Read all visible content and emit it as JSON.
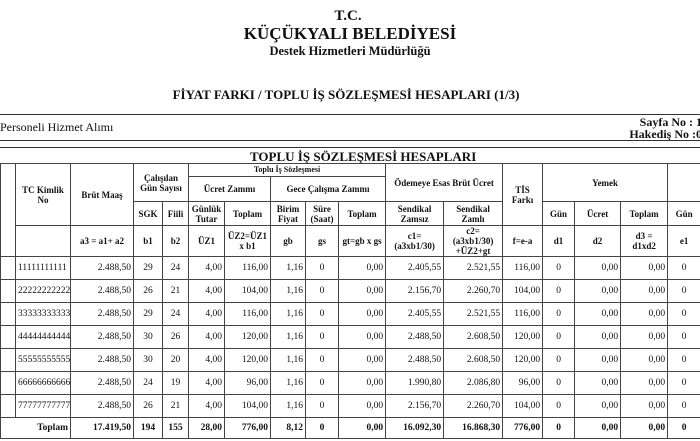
{
  "header": {
    "tc": "T.C.",
    "org": "KÜÇÜKYALI BELEDİYESİ",
    "dept": "Destek Hizmetleri Müdürlüğü",
    "report_title": "FİYAT FARKI / TOPLU İŞ SÖZLEŞMESİ HESAPLARI (1/3)",
    "service": "Personeli Hizmet Alımı",
    "page_no": "Sayfa No : 1",
    "hakedis_no": "Hakediş No :0"
  },
  "table": {
    "title": "TOPLU İŞ SÖZLEŞMESİ HESAPLARI",
    "headers": {
      "tc": "TC Kimlik No",
      "brut": "Brüt Maaş",
      "gun_sayisi": "Çalışılan Gün Sayısı",
      "tis": "Toplu İş Sözleşmesi",
      "ucret_zammi": "Ücret Zammı",
      "gece": "Gece Çalışma Zammı",
      "odemeye": "Ödemeye Esas Brüt Ücret",
      "tis_farki": "TİS Farkı",
      "yemek": "Yemek",
      "sgk": "SGK",
      "fiili": "Fiili",
      "gunluk": "Günlük Tutar",
      "toplam1": "Toplam",
      "birim": "Birim Fiyat",
      "sure": "Süre (Saat)",
      "toplam2": "Toplam",
      "zamsiz": "Sendikal Zamsız",
      "zamli": "Sendikal Zamlı",
      "gun1": "Gün",
      "ucret": "Ücret",
      "toplam3": "Toplam",
      "gun2": "Gün"
    },
    "formulas": [
      "a3 = a1+ a2",
      "b1",
      "b2",
      "ÜZ1",
      "ÜZ2=ÜZ1 x b1",
      "gb",
      "gs",
      "gt=gb x gs",
      "c1=(a3xb1/30)",
      "c2=(a3xb1/30) +ÜZ2+gt",
      "f=e-a",
      "d1",
      "d2",
      "d3 = d1xd2",
      "e1"
    ],
    "rows": [
      [
        "11111111111",
        "2.488,50",
        "29",
        "24",
        "4,00",
        "116,00",
        "1,16",
        "0",
        "0,00",
        "2.405,55",
        "2.521,55",
        "116,00",
        "0",
        "0,00",
        "0,00",
        "0"
      ],
      [
        "22222222222",
        "2.488,50",
        "26",
        "21",
        "4,00",
        "104,00",
        "1,16",
        "0",
        "0,00",
        "2.156,70",
        "2.260,70",
        "104,00",
        "0",
        "0,00",
        "0,00",
        "0"
      ],
      [
        "33333333333",
        "2.488,50",
        "29",
        "24",
        "4,00",
        "116,00",
        "1,16",
        "0",
        "0,00",
        "2.405,55",
        "2.521,55",
        "116,00",
        "0",
        "0,00",
        "0,00",
        "0"
      ],
      [
        "44444444444",
        "2.488,50",
        "30",
        "26",
        "4,00",
        "120,00",
        "1,16",
        "0",
        "0,00",
        "2.488,50",
        "2.608,50",
        "120,00",
        "0",
        "0,00",
        "0,00",
        "0"
      ],
      [
        "55555555555",
        "2.488,50",
        "30",
        "20",
        "4,00",
        "120,00",
        "1,16",
        "0",
        "0,00",
        "2.488,50",
        "2.608,50",
        "120,00",
        "0",
        "0,00",
        "0,00",
        "0"
      ],
      [
        "66666666666",
        "2.488,50",
        "24",
        "19",
        "4,00",
        "96,00",
        "1,16",
        "0",
        "0,00",
        "1.990,80",
        "2.086,80",
        "96,00",
        "0",
        "0,00",
        "0,00",
        "0"
      ],
      [
        "77777777777",
        "2.488,50",
        "26",
        "21",
        "4,00",
        "104,00",
        "1,16",
        "0",
        "0,00",
        "2.156,70",
        "2.260,70",
        "104,00",
        "0",
        "0,00",
        "0,00",
        "0"
      ]
    ],
    "total": [
      "Toplam",
      "17.419,50",
      "194",
      "155",
      "28,00",
      "776,00",
      "8,12",
      "0",
      "0,00",
      "16.092,30",
      "16.868,30",
      "776,00",
      "0",
      "0,00",
      "0,00",
      "0"
    ]
  }
}
